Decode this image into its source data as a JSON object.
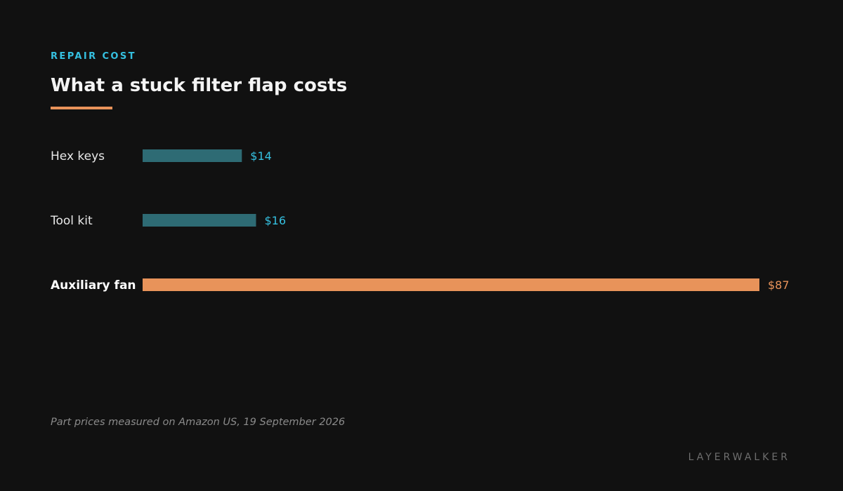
{
  "header": {
    "kicker": "REPAIR COST",
    "title": "What a stuck filter flap costs"
  },
  "chart_data": {
    "type": "bar",
    "orientation": "horizontal",
    "categories": [
      "Hex keys",
      "Tool kit",
      "Auxiliary fan"
    ],
    "values": [
      14,
      16,
      87
    ],
    "value_labels": [
      "$14",
      "$16",
      "$87"
    ],
    "highlight": "Auxiliary fan",
    "grid": false,
    "xlim": [
      0,
      87
    ]
  },
  "footer": {
    "note": "Part prices measured on Amazon US, 19 September 2026",
    "brand": "LAYERWALKER"
  },
  "colors": {
    "background": "#111111",
    "accent": "#35c0e0",
    "bar": "#2e6b74",
    "highlight": "#e8935a",
    "label": "#e8e8e8",
    "highlight_label": "#ffffff"
  }
}
